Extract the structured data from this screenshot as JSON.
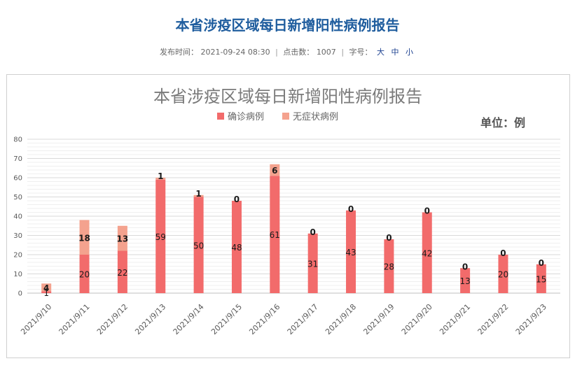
{
  "page": {
    "title": "本省涉疫区域每日新增阳性病例报告",
    "meta": {
      "publish_label": "发布时间：",
      "publish_time": "2021-09-24 08:30",
      "clicks_label": "点击数：",
      "clicks": "1007",
      "font_label": "字号：",
      "font_sizes": [
        "大",
        "中",
        "小"
      ]
    }
  },
  "chart_data": {
    "type": "bar",
    "stacked": true,
    "title": "本省涉疫区域每日新增阳性病例报告",
    "unit_label": "单位：例",
    "categories": [
      "2021/9/10",
      "2021/9/11",
      "2021/9/12",
      "2021/9/13",
      "2021/9/14",
      "2021/9/15",
      "2021/9/16",
      "2021/9/17",
      "2021/9/18",
      "2021/9/19",
      "2021/9/20",
      "2021/9/21",
      "2021/9/22",
      "2021/9/23"
    ],
    "series": [
      {
        "name": "确诊病例",
        "color": "#f26b6b",
        "values": [
          1,
          20,
          22,
          59,
          50,
          48,
          61,
          31,
          43,
          28,
          42,
          13,
          20,
          15
        ]
      },
      {
        "name": "无症状病例",
        "color": "#f4a28e",
        "values": [
          4,
          18,
          13,
          1,
          1,
          0,
          6,
          0,
          0,
          0,
          0,
          0,
          0,
          0
        ]
      }
    ],
    "ylim": [
      0,
      80
    ],
    "yticks": [
      0,
      10,
      20,
      30,
      40,
      50,
      60,
      70,
      80
    ],
    "legend_position": "top-center",
    "grid": true
  }
}
